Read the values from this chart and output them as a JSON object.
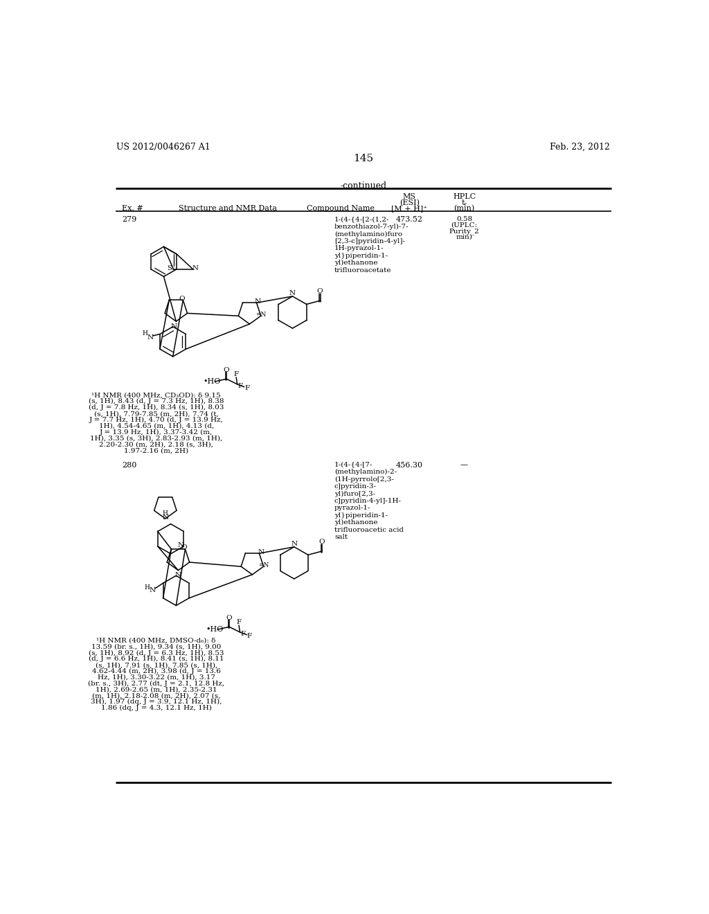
{
  "page_header_left": "US 2012/0046267 A1",
  "page_header_right": "Feb. 23, 2012",
  "page_number": "145",
  "continued_text": "-continued",
  "col1_header": "Ex. #",
  "col2_header": "Structure and NMR Data",
  "col3_header": "Compound Name",
  "col4_header_1": "MS",
  "col4_header_2": "(ESI)",
  "col4_header_3": "[M + H]⁺",
  "col5_header_1": "HPLC",
  "col5_header_2": "tᵣ",
  "col5_header_3": "(min)",
  "ex279_num": "279",
  "ex279_ms": "473.52",
  "ex279_hplc_1": "0.58",
  "ex279_hplc_2": "(UPLC:",
  "ex279_hplc_3": "Purity_2",
  "ex279_hplc_4": "min)",
  "ex279_name": "1-(4-{4-[2-(1,2-\nbenzothiazol-7-yl)-7-\n(methylamino)furo\n[2,3-c]pyridin-4-yl]-\n1H-pyrazol-1-\nyl}piperidin-1-\nyl)ethanone\ntrifluoroacetate",
  "ex279_nmr_line1": "¹H NMR (400 MHz, CD₃OD): δ 9.15",
  "ex279_nmr_line2": "(s, 1H), 8.43 (d, J = 7.3 Hz, 1H), 8.38",
  "ex279_nmr_line3": "(d, J = 7.8 Hz, 1H), 8.34 (s, 1H), 8.03",
  "ex279_nmr_line4": "(s, 1H), 7.79-7.85 (m, 2H), 7.74 (t,",
  "ex279_nmr_line5": "J = 7.7 Hz, 1H), 4.70 (d, J = 13.9 Hz,",
  "ex279_nmr_line6": "1H), 4.54-4.65 (m, 1H), 4.13 (d,",
  "ex279_nmr_line7": "J = 13.9 Hz, 1H), 3.37-3.42 (m,",
  "ex279_nmr_line8": "1H), 3.35 (s, 3H), 2.83-2.93 (m, 1H),",
  "ex279_nmr_line9": "2.20-2.30 (m, 2H), 2.18 (s, 3H),",
  "ex279_nmr_line10": "1.97-2.16 (m, 2H)",
  "ex280_num": "280",
  "ex280_ms": "456.30",
  "ex280_hplc": "—",
  "ex280_name": "1-(4-{4-[7-\n(methylamino)-2-\n(1H-pyrrolo[2,3-\nc]pyridin-3-\nyl)furo[2,3-\nc]pyridin-4-yl]-1H-\npyrazol-1-\nyl}piperidin-1-\nyl)ethanone\ntrifluoroacetic acid\nsalt",
  "ex280_nmr_line1": "¹H NMR (400 MHz, DMSO-d₆): δ",
  "ex280_nmr_line2": "13.59 (br. s., 1H), 9.34 (s, 1H), 9.00",
  "ex280_nmr_line3": "(s, 1H), 8.92 (d, J = 6.3 Hz, 1H), 8.53",
  "ex280_nmr_line4": "(d, J = 6.6 Hz, 1H), 8.41 (s, 1H), 8.11",
  "ex280_nmr_line5": "(s, 1H), 7.91 (s, 1H), 7.85 (s, 1H),",
  "ex280_nmr_line6": "4.62-4.44 (m, 2H), 3.98 (d, J = 13.6",
  "ex280_nmr_line7": "Hz, 1H), 3.30-3.22 (m, 1H), 3.17",
  "ex280_nmr_line8": "(br. s., 3H), 2.77 (dt, J = 2.1, 12.8 Hz,",
  "ex280_nmr_line9": "1H), 2.69-2.65 (m, 1H), 2.35-2.31",
  "ex280_nmr_line10": "(m, 1H), 2.18-2.08 (m, 2H), 2.07 (s,",
  "ex280_nmr_line11": "3H), 1.97 (dq, J = 3.9, 12.1 Hz, 1H),",
  "ex280_nmr_line12": "1.86 (dq, J = 4.3, 12.1 Hz, 1H)",
  "bg": "#ffffff"
}
